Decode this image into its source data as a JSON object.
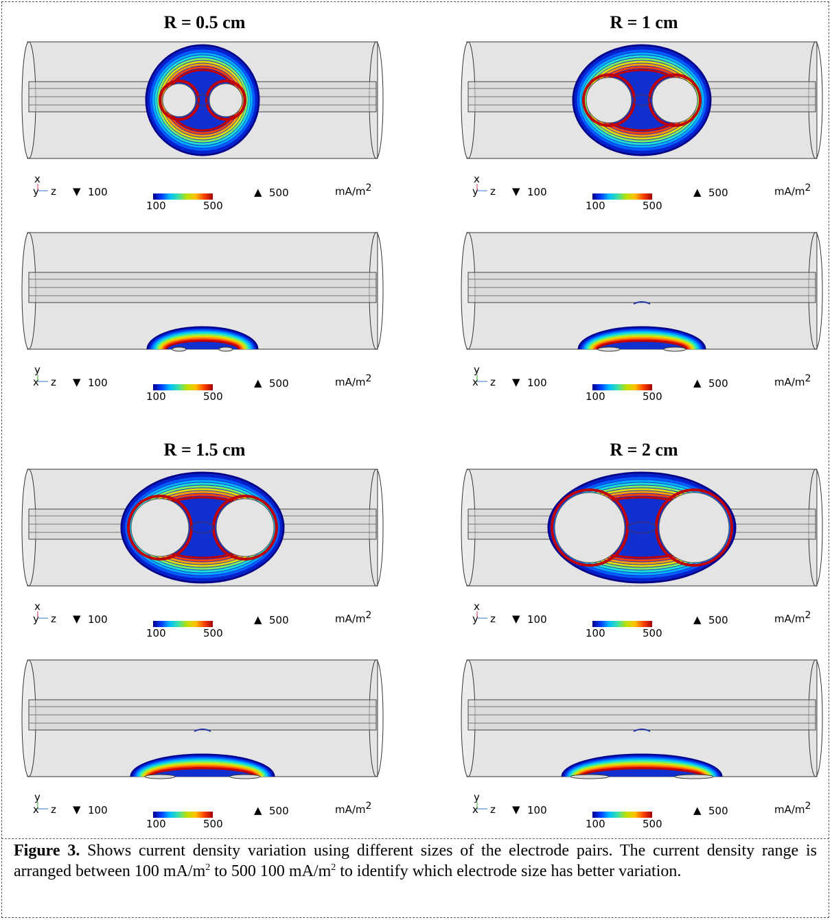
{
  "panels": [
    {
      "title": "R = 0.5 cm",
      "views": [
        {
          "axes": {
            "up": "x",
            "depth": "y",
            "right": "z"
          },
          "min": "100",
          "max": "500",
          "colorbar": [
            "100",
            "500"
          ],
          "unit": "mA/m",
          "unit_sup": "2"
        },
        {
          "axes": {
            "up": "y",
            "depth": "x",
            "right": "z"
          },
          "min": "100",
          "max": "500",
          "colorbar": [
            "100",
            "500"
          ],
          "unit": "mA/m",
          "unit_sup": "2"
        }
      ]
    },
    {
      "title": "R = 1 cm",
      "views": [
        {
          "axes": {
            "up": "x",
            "depth": "y",
            "right": "z"
          },
          "min": "100",
          "max": "500",
          "colorbar": [
            "100",
            "500"
          ],
          "unit": "mA/m",
          "unit_sup": "2"
        },
        {
          "axes": {
            "up": "y",
            "depth": "x",
            "right": "z"
          },
          "min": "100",
          "max": "500",
          "colorbar": [
            "100",
            "500"
          ],
          "unit": "mA/m",
          "unit_sup": "2"
        }
      ]
    },
    {
      "title": "R = 1.5 cm",
      "views": [
        {
          "axes": {
            "up": "x",
            "depth": "y",
            "right": "z"
          },
          "min": "100",
          "max": "500",
          "colorbar": [
            "100",
            "500"
          ],
          "unit": "mA/m",
          "unit_sup": "2"
        },
        {
          "axes": {
            "up": "y",
            "depth": "x",
            "right": "z"
          },
          "min": "100",
          "max": "500",
          "colorbar": [
            "100",
            "500"
          ],
          "unit": "mA/m",
          "unit_sup": "2"
        }
      ]
    },
    {
      "title": "R = 2 cm",
      "views": [
        {
          "axes": {
            "up": "x",
            "depth": "y",
            "right": "z"
          },
          "min": "100",
          "max": "500",
          "colorbar": [
            "100",
            "500"
          ],
          "unit": "mA/m",
          "unit_sup": "2"
        },
        {
          "axes": {
            "up": "y",
            "depth": "x",
            "right": "z"
          },
          "min": "100",
          "max": "500",
          "colorbar": [
            "100",
            "500"
          ],
          "unit": "mA/m",
          "unit_sup": "2"
        }
      ]
    }
  ],
  "caption": {
    "label": "Figure 3.",
    "text": [
      "Shows current density variation using different sizes of the electrode pairs. The current density range is arranged between 100 mA/m",
      "2",
      " to 500 100 mA/m",
      "2",
      " to identify which electrode size has better variation."
    ]
  }
}
